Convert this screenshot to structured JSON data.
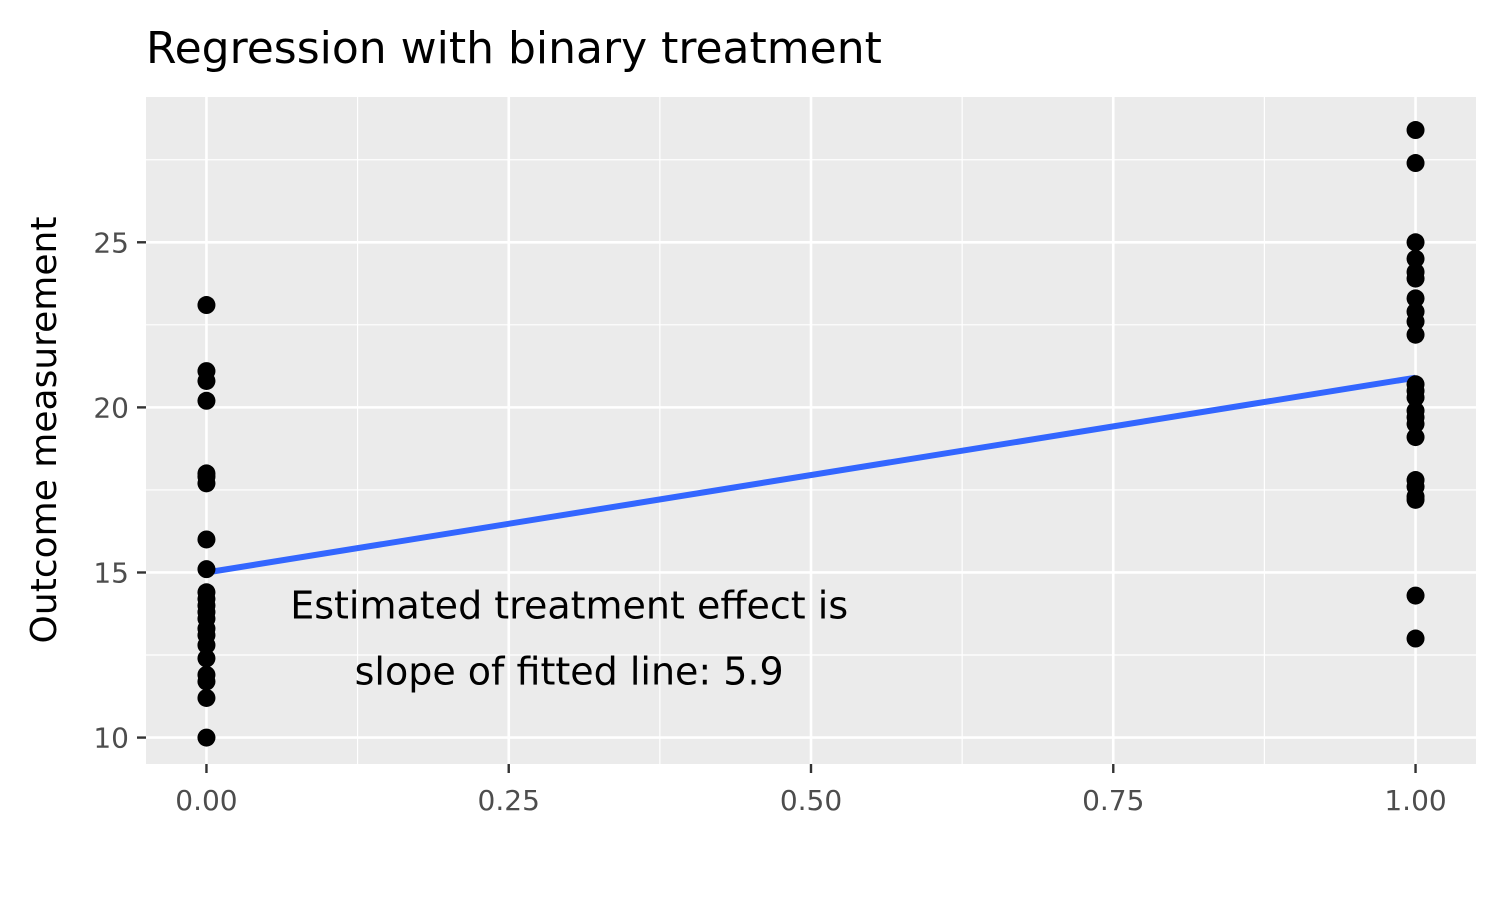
{
  "chart_data": {
    "type": "scatter",
    "title": "Regression with binary treatment",
    "xlabel": "",
    "ylabel": "Outcome measurement",
    "xlim": [
      -0.05,
      1.05
    ],
    "ylim": [
      9.2,
      29.4
    ],
    "x_ticks": [
      0,
      0.25,
      0.5,
      0.75,
      1
    ],
    "x_tick_labels": [
      "0.00",
      "0.25",
      "0.50",
      "0.75",
      "1.00"
    ],
    "y_ticks": [
      10,
      15,
      20,
      25
    ],
    "y_tick_labels": [
      "10",
      "15",
      "20",
      "25"
    ],
    "x_minor": [
      0.125,
      0.375,
      0.625,
      0.875
    ],
    "y_minor": [
      12.5,
      17.5,
      22.5,
      27.5
    ],
    "grid": true,
    "series": [
      {
        "type": "scatter",
        "color": "#000000",
        "points": [
          [
            0,
            23.1
          ],
          [
            0,
            21.1
          ],
          [
            0,
            20.8
          ],
          [
            0,
            20.2
          ],
          [
            0,
            18.0
          ],
          [
            0,
            17.9
          ],
          [
            0,
            17.7
          ],
          [
            0,
            16.0
          ],
          [
            0,
            15.1
          ],
          [
            0,
            14.4
          ],
          [
            0,
            14.2
          ],
          [
            0,
            14.0
          ],
          [
            0,
            13.8
          ],
          [
            0,
            13.6
          ],
          [
            0,
            13.3
          ],
          [
            0,
            13.1
          ],
          [
            0,
            12.8
          ],
          [
            0,
            12.4
          ],
          [
            0,
            11.9
          ],
          [
            0,
            11.7
          ],
          [
            0,
            11.2
          ],
          [
            0,
            10.0
          ],
          [
            1,
            28.4
          ],
          [
            1,
            27.4
          ],
          [
            1,
            25.0
          ],
          [
            1,
            24.5
          ],
          [
            1,
            24.1
          ],
          [
            1,
            23.9
          ],
          [
            1,
            23.3
          ],
          [
            1,
            22.9
          ],
          [
            1,
            22.6
          ],
          [
            1,
            22.2
          ],
          [
            1,
            20.7
          ],
          [
            1,
            20.5
          ],
          [
            1,
            20.3
          ],
          [
            1,
            19.9
          ],
          [
            1,
            19.7
          ],
          [
            1,
            19.5
          ],
          [
            1,
            19.1
          ],
          [
            1,
            17.8
          ],
          [
            1,
            17.6
          ],
          [
            1,
            17.3
          ],
          [
            1,
            17.2
          ],
          [
            1,
            14.3
          ],
          [
            1,
            13.0
          ]
        ]
      },
      {
        "type": "line",
        "color": "#3366ff",
        "x": [
          0,
          1
        ],
        "y": [
          15.0,
          20.9
        ]
      }
    ],
    "annotation": {
      "lines": [
        "Estimated treatment effect is",
        "slope of fitted line:  5.9"
      ],
      "x": 0.3,
      "y_lines": [
        14.0,
        12.0
      ]
    }
  },
  "colors": {
    "panel_background": "#ebebeb",
    "grid_major": "#ffffff",
    "fit_line": "#3366ff",
    "points": "#000000"
  }
}
